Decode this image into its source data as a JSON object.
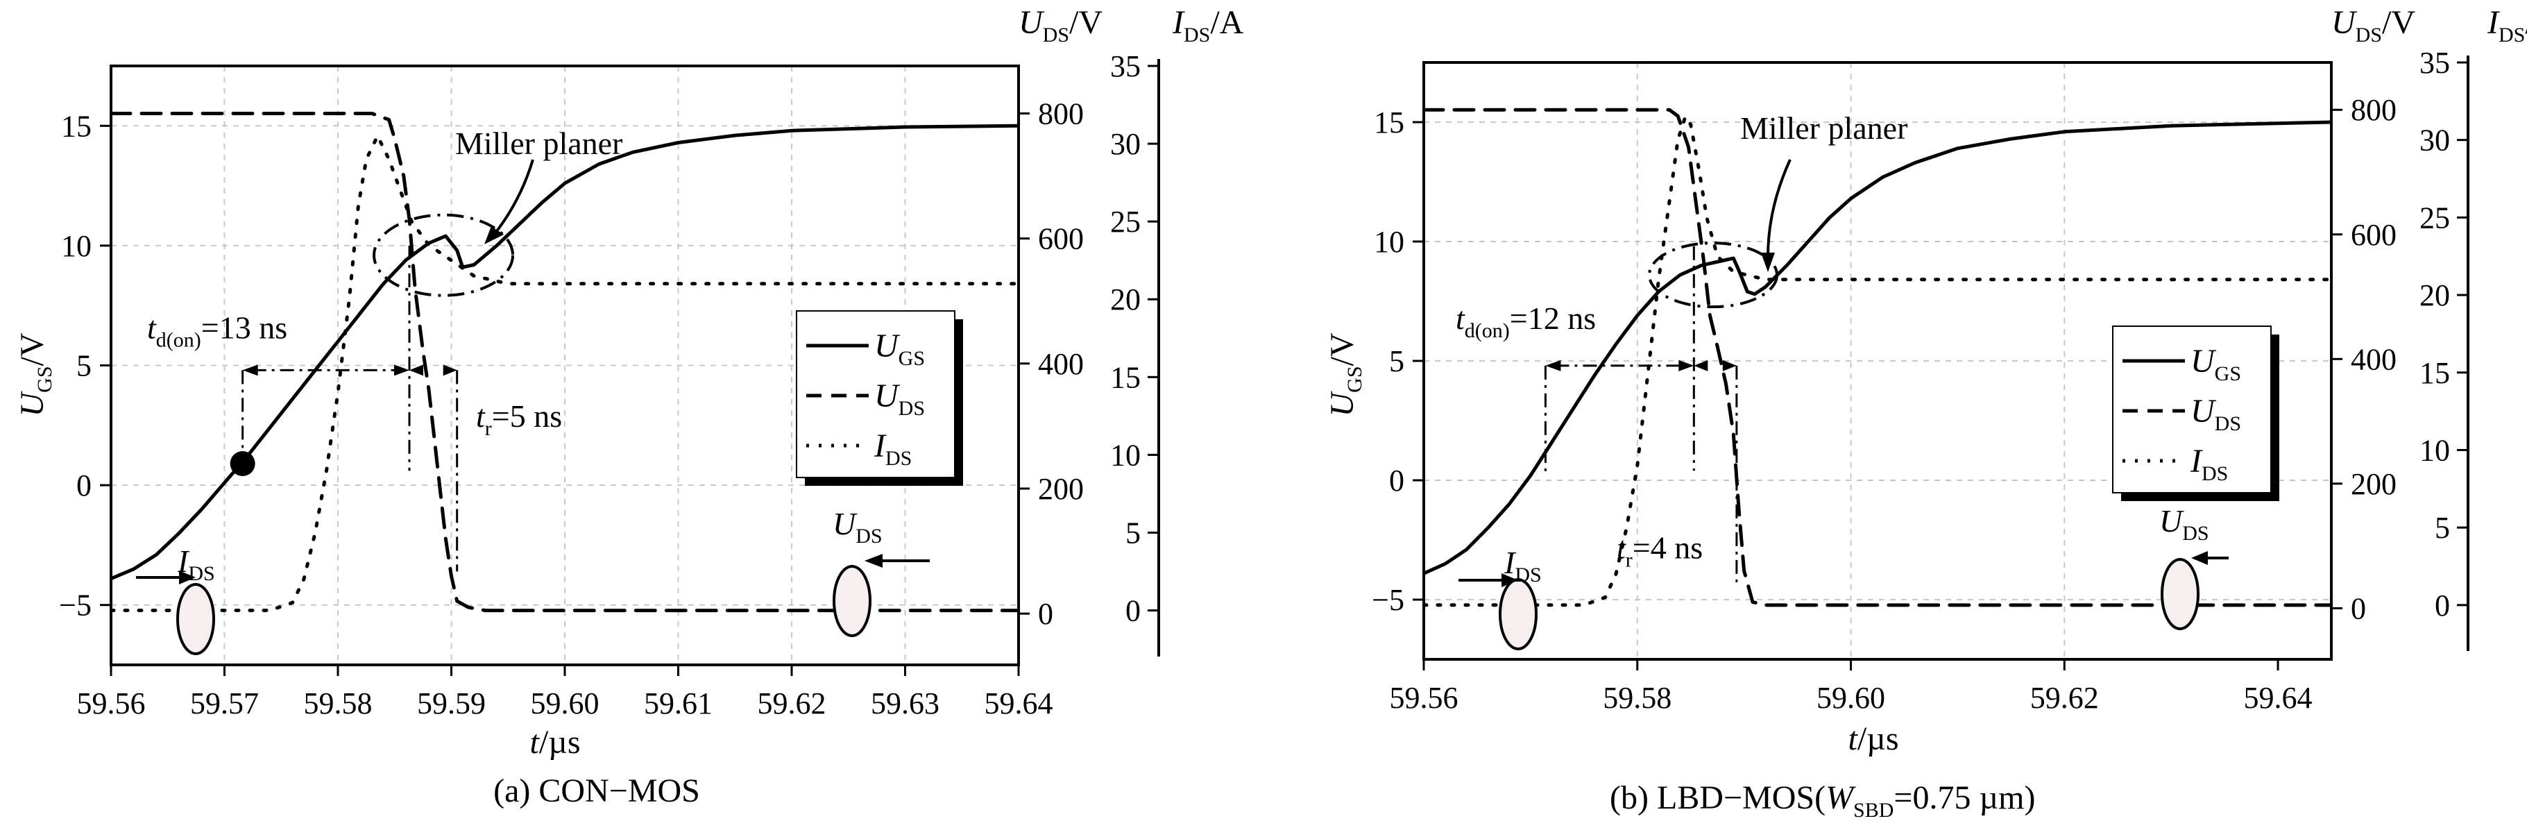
{
  "charts": [
    {
      "id": "a",
      "caption": "(a)  CON−MOS",
      "xlim": [
        59.56,
        59.64
      ],
      "x_ticks": [
        "59.56",
        "59.57",
        "59.58",
        "59.59",
        "59.60",
        "59.61",
        "59.62",
        "59.63",
        "59.64"
      ],
      "x_tick_values": [
        59.56,
        59.57,
        59.58,
        59.59,
        59.6,
        59.61,
        59.62,
        59.63,
        59.64
      ],
      "x_axis_label": {
        "main": "t",
        "rest": "/µs"
      },
      "ugs_lim": [
        -7.5,
        17.5
      ],
      "ugs_ticks": [
        "15",
        "10",
        "5",
        "0",
        "−5"
      ],
      "ugs_tick_values": [
        15,
        10,
        5,
        0,
        -5
      ],
      "ugs_axis_label": {
        "main": "U",
        "sub": "GS",
        "rest": "/V"
      },
      "uds_lim": [
        -82,
        876
      ],
      "uds_ticks": [
        "800",
        "600",
        "400",
        "200",
        "0"
      ],
      "uds_tick_values": [
        800,
        600,
        400,
        200,
        0
      ],
      "uds_axis_label": {
        "main": "U",
        "sub": "DS",
        "rest": "/V"
      },
      "ids_lim": [
        -3.5,
        35
      ],
      "ids_ticks": [
        "35",
        "30",
        "25",
        "20",
        "15",
        "10",
        "5",
        "0"
      ],
      "ids_tick_values": [
        35,
        30,
        25,
        20,
        15,
        10,
        5,
        0
      ],
      "ids_axis_label": {
        "main": "I",
        "sub": "DS",
        "rest": "/A"
      },
      "legend": [
        {
          "main": "U",
          "sub": "GS",
          "style": "solid"
        },
        {
          "main": "U",
          "sub": "DS",
          "style": "dashed"
        },
        {
          "main": "I",
          "sub": "DS",
          "style": "dotted"
        }
      ],
      "annotations": {
        "miller": "Miller planer",
        "td_label": {
          "main": "t",
          "sub": "d(on)",
          "rest": "=13 ns"
        },
        "tr_label": {
          "main": "t",
          "sub": "r",
          "rest": "=5 ns"
        },
        "ids_marker": {
          "main": "I",
          "sub": "DS"
        },
        "uds_marker": {
          "main": "U",
          "sub": "DS"
        }
      },
      "chart_data": {
        "type": "line",
        "series": [
          {
            "name": "U_GS",
            "axis": "ugs",
            "points": [
              [
                59.56,
                -3.9
              ],
              [
                59.562,
                -3.5
              ],
              [
                59.564,
                -2.9
              ],
              [
                59.566,
                -2.0
              ],
              [
                59.568,
                -1.0
              ],
              [
                59.57,
                0.1
              ],
              [
                59.572,
                1.2
              ],
              [
                59.574,
                2.4
              ],
              [
                59.576,
                3.6
              ],
              [
                59.578,
                4.8
              ],
              [
                59.58,
                6.0
              ],
              [
                59.582,
                7.2
              ],
              [
                59.584,
                8.4
              ],
              [
                59.586,
                9.4
              ],
              [
                59.588,
                10.1
              ],
              [
                59.5895,
                10.4
              ],
              [
                59.5905,
                9.8
              ],
              [
                59.591,
                9.1
              ],
              [
                59.592,
                9.2
              ],
              [
                59.594,
                10.0
              ],
              [
                59.596,
                10.9
              ],
              [
                59.598,
                11.8
              ],
              [
                59.6,
                12.6
              ],
              [
                59.603,
                13.4
              ],
              [
                59.606,
                13.9
              ],
              [
                59.61,
                14.3
              ],
              [
                59.615,
                14.6
              ],
              [
                59.62,
                14.8
              ],
              [
                59.63,
                14.95
              ],
              [
                59.64,
                15.0
              ]
            ]
          },
          {
            "name": "U_DS",
            "axis": "uds",
            "points": [
              [
                59.56,
                800
              ],
              [
                59.58,
                800
              ],
              [
                59.583,
                800
              ],
              [
                59.5845,
                790
              ],
              [
                59.585,
                760
              ],
              [
                59.5858,
                700
              ],
              [
                59.5863,
                630
              ],
              [
                59.5868,
                520
              ],
              [
                59.5875,
                420
              ],
              [
                59.588,
                360
              ],
              [
                59.5885,
                280
              ],
              [
                59.589,
                200
              ],
              [
                59.5895,
                120
              ],
              [
                59.59,
                60
              ],
              [
                59.5905,
                20
              ],
              [
                59.5915,
                10
              ],
              [
                59.593,
                5
              ],
              [
                59.6,
                5
              ],
              [
                59.64,
                5
              ]
            ]
          },
          {
            "name": "I_DS",
            "axis": "ids",
            "points": [
              [
                59.56,
                0
              ],
              [
                59.574,
                0
              ],
              [
                59.576,
                0.5
              ],
              [
                59.577,
                2
              ],
              [
                59.578,
                5
              ],
              [
                59.579,
                9
              ],
              [
                59.58,
                14
              ],
              [
                59.581,
                20
              ],
              [
                59.5818,
                26
              ],
              [
                59.5825,
                29
              ],
              [
                59.5835,
                30.5
              ],
              [
                59.5845,
                29
              ],
              [
                59.5855,
                27
              ],
              [
                59.5865,
                25
              ],
              [
                59.588,
                23.5
              ],
              [
                59.59,
                22.5
              ],
              [
                59.592,
                21.5
              ],
              [
                59.595,
                21
              ],
              [
                59.6,
                21
              ],
              [
                59.64,
                21
              ]
            ]
          }
        ]
      }
    },
    {
      "id": "b",
      "caption": "(b)  LBD−MOS(",
      "caption_w": {
        "main": "W",
        "sub": "SBD",
        "rest": "=0.75 µm)"
      },
      "xlim": [
        59.56,
        59.645
      ],
      "x_ticks": [
        "59.56",
        "59.58",
        "59.60",
        "59.62",
        "59.64"
      ],
      "x_tick_values": [
        59.56,
        59.58,
        59.6,
        59.62,
        59.64
      ],
      "x_axis_label": {
        "main": "t",
        "rest": "/µs"
      },
      "ugs_lim": [
        -7.5,
        17.5
      ],
      "ugs_ticks": [
        "15",
        "10",
        "5",
        "0",
        "−5"
      ],
      "ugs_tick_values": [
        15,
        10,
        5,
        0,
        -5
      ],
      "ugs_axis_label": {
        "main": "U",
        "sub": "GS",
        "rest": "/V"
      },
      "uds_lim": [
        -82,
        876
      ],
      "uds_ticks": [
        "800",
        "600",
        "400",
        "200",
        "0"
      ],
      "uds_tick_values": [
        800,
        600,
        400,
        200,
        0
      ],
      "uds_axis_label": {
        "main": "U",
        "sub": "DS",
        "rest": "/V"
      },
      "ids_lim": [
        -3.5,
        35
      ],
      "ids_ticks": [
        "35",
        "30",
        "25",
        "20",
        "15",
        "10",
        "5",
        "0"
      ],
      "ids_tick_values": [
        35,
        30,
        25,
        20,
        15,
        10,
        5,
        0
      ],
      "ids_axis_label": {
        "main": "I",
        "sub": "DS",
        "rest": "/A"
      },
      "legend": [
        {
          "main": "U",
          "sub": "GS",
          "style": "solid"
        },
        {
          "main": "U",
          "sub": "DS",
          "style": "dashed"
        },
        {
          "main": "I",
          "sub": "DS",
          "style": "dotted"
        }
      ],
      "annotations": {
        "miller": "Miller planer",
        "td_label": {
          "main": "t",
          "sub": "d(on)",
          "rest": "=12 ns"
        },
        "tr_label": {
          "main": "t",
          "sub": "r",
          "rest": "=4 ns"
        },
        "ids_marker": {
          "main": "I",
          "sub": "DS"
        },
        "uds_marker": {
          "main": "U",
          "sub": "DS"
        }
      },
      "chart_data": {
        "type": "line",
        "series": [
          {
            "name": "U_GS",
            "axis": "ugs",
            "points": [
              [
                59.56,
                -3.9
              ],
              [
                59.562,
                -3.5
              ],
              [
                59.564,
                -2.9
              ],
              [
                59.566,
                -2.0
              ],
              [
                59.568,
                -1.0
              ],
              [
                59.57,
                0.2
              ],
              [
                59.572,
                1.6
              ],
              [
                59.574,
                3.0
              ],
              [
                59.576,
                4.4
              ],
              [
                59.578,
                5.7
              ],
              [
                59.58,
                6.9
              ],
              [
                59.582,
                7.9
              ],
              [
                59.584,
                8.6
              ],
              [
                59.586,
                9.0
              ],
              [
                59.588,
                9.2
              ],
              [
                59.589,
                9.3
              ],
              [
                59.5895,
                8.8
              ],
              [
                59.5903,
                7.9
              ],
              [
                59.591,
                7.8
              ],
              [
                59.592,
                8.1
              ],
              [
                59.594,
                9.0
              ],
              [
                59.596,
                10.0
              ],
              [
                59.598,
                11.0
              ],
              [
                59.6,
                11.8
              ],
              [
                59.603,
                12.7
              ],
              [
                59.606,
                13.3
              ],
              [
                59.61,
                13.9
              ],
              [
                59.615,
                14.3
              ],
              [
                59.62,
                14.6
              ],
              [
                59.63,
                14.85
              ],
              [
                59.645,
                15.0
              ]
            ]
          },
          {
            "name": "U_DS",
            "axis": "uds",
            "points": [
              [
                59.56,
                800
              ],
              [
                59.58,
                800
              ],
              [
                59.583,
                800
              ],
              [
                59.5838,
                790
              ],
              [
                59.5842,
                770
              ],
              [
                59.5848,
                740
              ],
              [
                59.5855,
                650
              ],
              [
                59.5862,
                560
              ],
              [
                59.5868,
                470
              ],
              [
                59.5875,
                420
              ],
              [
                59.5883,
                360
              ],
              [
                59.589,
                280
              ],
              [
                59.5895,
                160
              ],
              [
                59.59,
                60
              ],
              [
                59.5908,
                10
              ],
              [
                59.592,
                5
              ],
              [
                59.6,
                5
              ],
              [
                59.645,
                5
              ]
            ]
          },
          {
            "name": "I_DS",
            "axis": "ids",
            "points": [
              [
                59.56,
                0
              ],
              [
                59.575,
                0
              ],
              [
                59.577,
                0.5
              ],
              [
                59.578,
                2
              ],
              [
                59.579,
                5
              ],
              [
                59.58,
                9
              ],
              [
                59.581,
                15
              ],
              [
                59.582,
                21
              ],
              [
                59.583,
                26
              ],
              [
                59.5838,
                30
              ],
              [
                59.5845,
                31.5
              ],
              [
                59.585,
                31
              ],
              [
                59.5858,
                28
              ],
              [
                59.5865,
                25
              ],
              [
                59.5875,
                22.5
              ],
              [
                59.589,
                21.5
              ],
              [
                59.592,
                21
              ],
              [
                59.6,
                21
              ],
              [
                59.645,
                21
              ]
            ]
          }
        ]
      }
    }
  ]
}
